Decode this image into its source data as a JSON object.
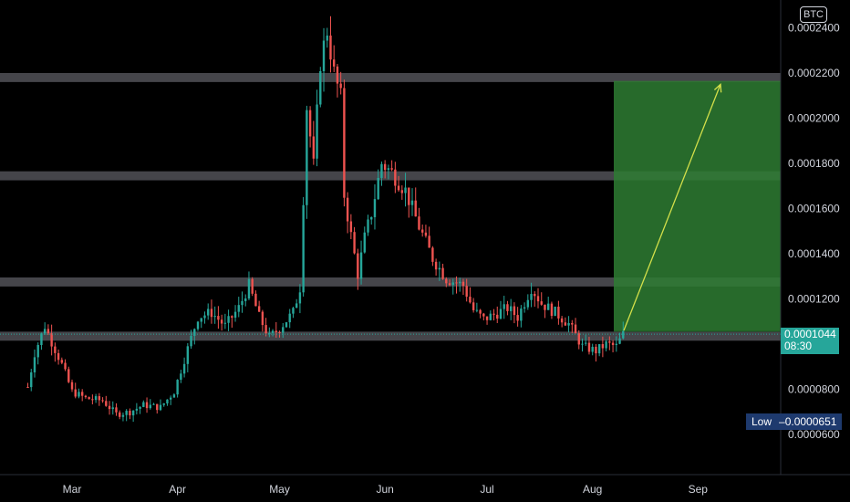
{
  "chart_data": {
    "type": "candlestick",
    "currency": "BTC",
    "y_ticks": [
      "0.0002400",
      "0.0002200",
      "0.0002000",
      "0.0001800",
      "0.0001600",
      "0.0001400",
      "0.0001200",
      "0.0000800",
      "0.0000600"
    ],
    "y_tick_values": [
      0.00024,
      0.00022,
      0.0002,
      0.00018,
      0.00016,
      0.00014,
      0.00012,
      8e-05,
      6e-05
    ],
    "x_ticks": [
      "Mar",
      "Apr",
      "May",
      "Jun",
      "Jul",
      "Aug",
      "Sep"
    ],
    "ylim": [
      4e-05,
      0.00025
    ],
    "last_price": "0.0001044",
    "countdown": "08:30",
    "low_label": "Low",
    "low_value": "0.0000651",
    "zones": [
      {
        "low": 0.0001015,
        "high": 0.0001055
      },
      {
        "low": 0.0001255,
        "high": 0.0001295
      },
      {
        "low": 0.0001725,
        "high": 0.0001765
      },
      {
        "low": 0.000216,
        "high": 0.00022
      }
    ],
    "target_box": {
      "price_from": 0.0001057,
      "price_to": 0.0002165,
      "start": "Aug 10",
      "end": "Sep 30"
    },
    "arrow": {
      "from_price": 0.000106,
      "to_price": 0.000215
    },
    "colors": {
      "up": "#26a69a",
      "down": "#ef5350",
      "zone": "#4d4d52",
      "target": "#2e7d32",
      "arrow": "#d4e04a"
    },
    "keyframes": [
      {
        "d": "Feb 16",
        "p": 8.1e-05
      },
      {
        "d": "Feb 18",
        "p": 9.6e-05
      },
      {
        "d": "Feb 21",
        "p": 0.000108
      },
      {
        "d": "Feb 23",
        "p": 0.000101
      },
      {
        "d": "Feb 26",
        "p": 9.1e-05
      },
      {
        "d": "Mar 1",
        "p": 7.9e-05
      },
      {
        "d": "Mar 5",
        "p": 7.6e-05
      },
      {
        "d": "Mar 10",
        "p": 7.5e-05
      },
      {
        "d": "Mar 14",
        "p": 6.9e-05
      },
      {
        "d": "Mar 18",
        "p": 7e-05
      },
      {
        "d": "Mar 22",
        "p": 7.3e-05
      },
      {
        "d": "Mar 27",
        "p": 7.2e-05
      },
      {
        "d": "Mar 31",
        "p": 7.9e-05
      },
      {
        "d": "Apr 4",
        "p": 9.8e-05
      },
      {
        "d": "Apr 7",
        "p": 0.000112
      },
      {
        "d": "Apr 11",
        "p": 0.000114
      },
      {
        "d": "Apr 15",
        "p": 0.000108
      },
      {
        "d": "Apr 19",
        "p": 0.000116
      },
      {
        "d": "Apr 22",
        "p": 0.000126
      },
      {
        "d": "Apr 25",
        "p": 0.000112
      },
      {
        "d": "Apr 28",
        "p": 0.000103
      },
      {
        "d": "May 1",
        "p": 0.000107
      },
      {
        "d": "May 5",
        "p": 0.000114
      },
      {
        "d": "May 7",
        "p": 0.000125
      },
      {
        "d": "May 9",
        "p": 0.000205
      },
      {
        "d": "May 11",
        "p": 0.000179
      },
      {
        "d": "May 13",
        "p": 0.000225
      },
      {
        "d": "May 15",
        "p": 0.000239
      },
      {
        "d": "May 17",
        "p": 0.00022
      },
      {
        "d": "May 19",
        "p": 0.000209
      },
      {
        "d": "May 20",
        "p": 0.000166
      },
      {
        "d": "May 22",
        "p": 0.000148
      },
      {
        "d": "May 24",
        "p": 0.000131
      },
      {
        "d": "May 26",
        "p": 0.000147
      },
      {
        "d": "May 28",
        "p": 0.000158
      },
      {
        "d": "May 31",
        "p": 0.00018
      },
      {
        "d": "Jun 3",
        "p": 0.000176
      },
      {
        "d": "Jun 7",
        "p": 0.000168
      },
      {
        "d": "Jun 11",
        "p": 0.000152
      },
      {
        "d": "Jun 15",
        "p": 0.000138
      },
      {
        "d": "Jun 19",
        "p": 0.000129
      },
      {
        "d": "Jun 24",
        "p": 0.000126
      },
      {
        "d": "Jun 27",
        "p": 0.000115
      },
      {
        "d": "Jun 30",
        "p": 0.000111
      },
      {
        "d": "Jul 3",
        "p": 0.000113
      },
      {
        "d": "Jul 7",
        "p": 0.000116
      },
      {
        "d": "Jul 10",
        "p": 0.000112
      },
      {
        "d": "Jul 14",
        "p": 0.000125
      },
      {
        "d": "Jul 17",
        "p": 0.000118
      },
      {
        "d": "Jul 21",
        "p": 0.000114
      },
      {
        "d": "Jul 25",
        "p": 0.000109
      },
      {
        "d": "Jul 29",
        "p": 9.9e-05
      },
      {
        "d": "Aug 2",
        "p": 9.7e-05
      },
      {
        "d": "Aug 5",
        "p": 0.0001
      },
      {
        "d": "Aug 8",
        "p": 9.9e-05
      },
      {
        "d": "Aug 10",
        "p": 0.0001044
      }
    ]
  }
}
